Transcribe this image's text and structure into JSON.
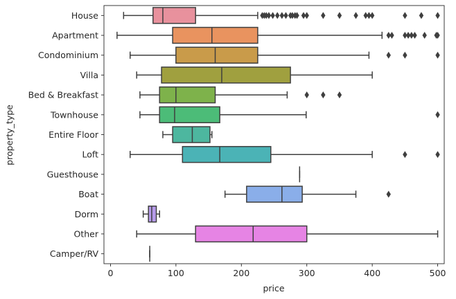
{
  "chart_data": {
    "type": "boxplot",
    "orientation": "horizontal",
    "xlabel": "price",
    "ylabel": "property_type",
    "xlim": [
      -10,
      510
    ],
    "xticks": [
      0,
      100,
      200,
      300,
      400,
      500
    ],
    "grid": false,
    "categories": [
      "House",
      "Apartment",
      "Condominium",
      "Villa",
      "Bed & Breakfast",
      "Townhouse",
      "Entire Floor",
      "Loft",
      "Guesthouse",
      "Boat",
      "Dorm",
      "Other",
      "Camper/RV"
    ],
    "boxes": [
      {
        "category": "House",
        "color": "#e8919d",
        "whisker_low": 20,
        "q1": 65,
        "median": 80,
        "q3": 130,
        "whisker_high": 225,
        "outliers": [
          232,
          235,
          238,
          242,
          248,
          255,
          262,
          268,
          275,
          278,
          282,
          285,
          295,
          300,
          325,
          350,
          375,
          390,
          395,
          400,
          450,
          475,
          500
        ]
      },
      {
        "category": "Apartment",
        "color": "#e9935f",
        "whisker_low": 10,
        "q1": 95,
        "median": 155,
        "q3": 225,
        "whisker_high": 415,
        "outliers": [
          425,
          430,
          450,
          455,
          460,
          465,
          480,
          498,
          500
        ]
      },
      {
        "category": "Condominium",
        "color": "#c99b4a",
        "whisker_low": 30,
        "q1": 100,
        "median": 160,
        "q3": 225,
        "whisker_high": 395,
        "outliers": [
          425,
          450,
          500
        ]
      },
      {
        "category": "Villa",
        "color": "#a0a03f",
        "whisker_low": 40,
        "q1": 78,
        "median": 170,
        "q3": 275,
        "whisker_high": 400,
        "outliers": []
      },
      {
        "category": "Bed & Breakfast",
        "color": "#7eb24b",
        "whisker_low": 45,
        "q1": 75,
        "median": 100,
        "q3": 160,
        "whisker_high": 270,
        "outliers": [
          300,
          325,
          350
        ]
      },
      {
        "category": "Townhouse",
        "color": "#4cbc78",
        "whisker_low": 45,
        "q1": 75,
        "median": 98,
        "q3": 167,
        "whisker_high": 299,
        "outliers": [
          500
        ]
      },
      {
        "category": "Entire Floor",
        "color": "#4db79f",
        "whisker_low": 80,
        "q1": 95,
        "median": 125,
        "q3": 152,
        "whisker_high": 155,
        "outliers": []
      },
      {
        "category": "Loft",
        "color": "#4bb3b6",
        "whisker_low": 30,
        "q1": 110,
        "median": 167,
        "q3": 245,
        "whisker_high": 400,
        "outliers": [
          450,
          500
        ]
      },
      {
        "category": "Guesthouse",
        "color": "#52aed3",
        "whisker_low": 289,
        "q1": 289,
        "median": 289,
        "q3": 289,
        "whisker_high": 289,
        "outliers": []
      },
      {
        "category": "Boat",
        "color": "#8aaee9",
        "whisker_low": 175,
        "q1": 208,
        "median": 262,
        "q3": 293,
        "whisker_high": 375,
        "outliers": [
          425
        ]
      },
      {
        "category": "Dorm",
        "color": "#b69bea",
        "whisker_low": 50,
        "q1": 58,
        "median": 63,
        "q3": 70,
        "whisker_high": 75,
        "outliers": []
      },
      {
        "category": "Other",
        "color": "#e684e4",
        "whisker_low": 40,
        "q1": 130,
        "median": 218,
        "q3": 300,
        "whisker_high": 500,
        "outliers": []
      },
      {
        "category": "Camper/RV",
        "color": "#e88ac4",
        "whisker_low": 60,
        "q1": 60,
        "median": 60,
        "q3": 60,
        "whisker_high": 60,
        "outliers": []
      }
    ]
  }
}
